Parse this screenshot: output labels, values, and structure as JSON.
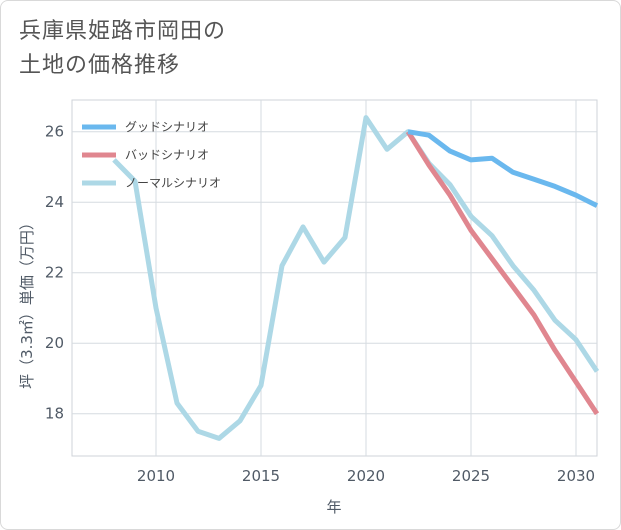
{
  "title_lines": [
    "兵庫県姫路市岡田の",
    "土地の価格推移"
  ],
  "chart_data": {
    "type": "line",
    "title": "兵庫県姫路市岡田の土地の価格推移",
    "xlabel": "年",
    "ylabel": "坪（3.3㎡）単価（万円）",
    "xlim": [
      2006,
      2031
    ],
    "ylim": [
      16.8,
      26.9
    ],
    "xticks": [
      2010,
      2015,
      2020,
      2025,
      2030
    ],
    "yticks": [
      18,
      20,
      22,
      24,
      26
    ],
    "legend_position": "top-left",
    "series": [
      {
        "name": "グッドシナリオ",
        "color": "#6ab8ee",
        "x": [
          2022,
          2023,
          2024,
          2025,
          2026,
          2027,
          2028,
          2029,
          2030,
          2031
        ],
        "y": [
          26.0,
          25.9,
          25.45,
          25.2,
          25.25,
          24.85,
          24.65,
          24.45,
          24.2,
          23.9
        ]
      },
      {
        "name": "バッドシナリオ",
        "color": "#e0868f",
        "x": [
          2022,
          2023,
          2024,
          2025,
          2026,
          2027,
          2028,
          2029,
          2030,
          2031
        ],
        "y": [
          26.0,
          25.05,
          24.2,
          23.2,
          22.4,
          21.6,
          20.8,
          19.8,
          18.9,
          18.0
        ]
      },
      {
        "name": "ノーマルシナリオ",
        "color": "#add8e6",
        "x": [
          2008,
          2009,
          2010,
          2011,
          2012,
          2013,
          2014,
          2015,
          2016,
          2017,
          2018,
          2019,
          2020,
          2021,
          2022,
          2023,
          2024,
          2025,
          2026,
          2027,
          2028,
          2029,
          2030,
          2031
        ],
        "y": [
          25.2,
          24.6,
          21.0,
          18.3,
          17.5,
          17.3,
          17.8,
          18.8,
          22.2,
          23.3,
          22.3,
          23.0,
          26.4,
          25.5,
          26.0,
          25.1,
          24.5,
          23.6,
          23.05,
          22.2,
          21.5,
          20.65,
          20.1,
          19.2
        ]
      }
    ]
  }
}
